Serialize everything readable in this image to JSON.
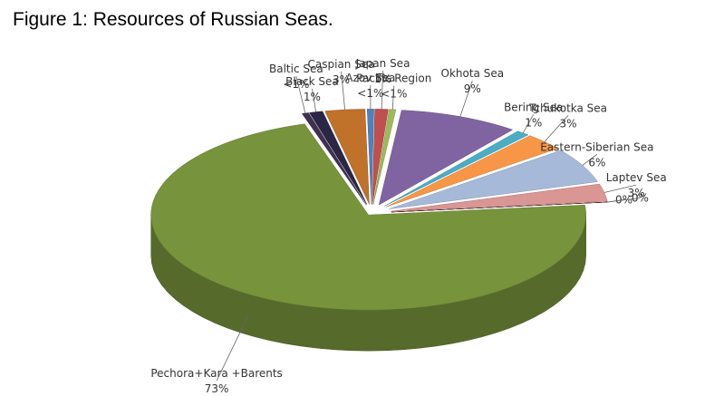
{
  "chart_data": {
    "type": "pie",
    "title": "Figure 1: Resources of Russian Seas.",
    "categories": [
      "Pechora+Kara +Barents",
      "Baltic Sea",
      "Black Sea",
      "Caspian Sea",
      "Azov Sea",
      "Japan Sea",
      "Pacific Region",
      "Okhota Sea",
      "Bering Sea",
      "Tchukotka Sea",
      "Eastern-Siberian Sea",
      "Laptev Sea",
      null,
      null
    ],
    "values": [
      73,
      0.5,
      1,
      3,
      0.5,
      1,
      0.5,
      9,
      1,
      3,
      6,
      3,
      0,
      0
    ],
    "value_labels": [
      "73%",
      "<1%",
      "1%",
      "3%",
      "<1%",
      "1%",
      "<1%",
      "9%",
      "1%",
      "3%",
      "6%",
      "3%",
      "0%",
      "0%"
    ],
    "colors": [
      "#77933c",
      "#3f3151",
      "#2b2645",
      "#c0712a",
      "#4f81bd",
      "#c0504d",
      "#9bbb59",
      "#8064a2",
      "#4bacc6",
      "#f79646",
      "#a6b9d8",
      "#d99694",
      "#632523",
      "#632523"
    ]
  }
}
